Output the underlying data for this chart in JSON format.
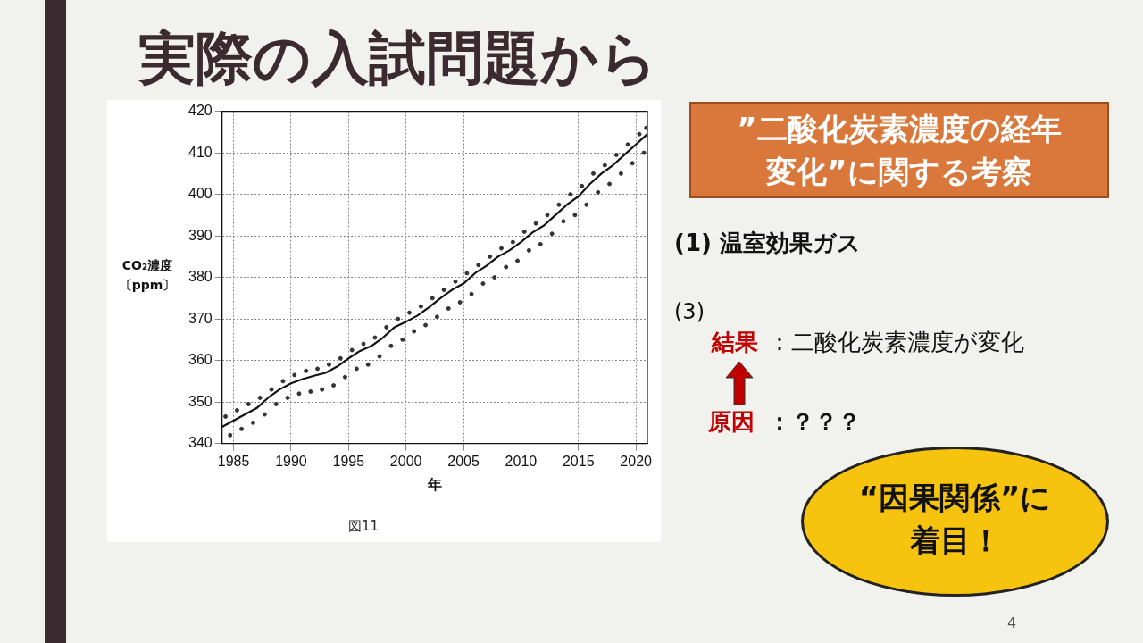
{
  "chart_data": {
    "type": "line",
    "title": "実際の入試問題から",
    "xlabel": "年",
    "ylabel": "CO₂濃度〔ppm〕",
    "xlim": [
      1984,
      2021
    ],
    "xticks": [
      1985,
      1990,
      1995,
      2000,
      2005,
      2010,
      2015,
      2020
    ],
    "ylim": [
      340,
      420
    ],
    "yticks": [
      340,
      350,
      360,
      370,
      380,
      390,
      400,
      410,
      420
    ],
    "grid": true,
    "legend": false,
    "series": [
      {
        "type": "scatter",
        "color": "#333333",
        "marker": "circle",
        "x": [
          1984.3,
          1984.7,
          1985.3,
          1985.7,
          1986.3,
          1986.7,
          1987.3,
          1987.7,
          1988.3,
          1988.7,
          1989.3,
          1989.7,
          1990.3,
          1990.7,
          1991.3,
          1991.7,
          1992.3,
          1992.7,
          1993.3,
          1993.7,
          1994.3,
          1994.7,
          1995.3,
          1995.7,
          1996.3,
          1996.7,
          1997.3,
          1997.7,
          1998.3,
          1998.7,
          1999.3,
          1999.7,
          2000.3,
          2000.7,
          2001.3,
          2001.7,
          2002.3,
          2002.7,
          2003.3,
          2003.7,
          2004.3,
          2004.7,
          2005.3,
          2005.7,
          2006.3,
          2006.7,
          2007.3,
          2007.7,
          2008.3,
          2008.7,
          2009.3,
          2009.7,
          2010.3,
          2010.7,
          2011.3,
          2011.7,
          2012.3,
          2012.7,
          2013.3,
          2013.7,
          2014.3,
          2014.7,
          2015.3,
          2015.7,
          2016.3,
          2016.7,
          2017.3,
          2017.7,
          2018.3,
          2018.7,
          2019.3,
          2019.7,
          2020.3,
          2020.7,
          2020.9
        ],
        "values": [
          346.5,
          342,
          348,
          343.5,
          349.5,
          345,
          351,
          347,
          353,
          349.5,
          355,
          351,
          356.5,
          352,
          357.5,
          352.5,
          358,
          353,
          359,
          354,
          360.5,
          356,
          362.5,
          358,
          364,
          359,
          365.5,
          361,
          368,
          363.5,
          370,
          365,
          371.5,
          367,
          373,
          368.5,
          375,
          370.5,
          377,
          372.5,
          379,
          374,
          381,
          376,
          383,
          378.5,
          385,
          380,
          387,
          382.5,
          388.5,
          384,
          391,
          386.5,
          393,
          388,
          395,
          390.5,
          397.5,
          393.5,
          400,
          395,
          402,
          397.5,
          405,
          400.5,
          407,
          402.5,
          409.5,
          405,
          412,
          407.5,
          414.5,
          410,
          416
        ]
      },
      {
        "type": "line",
        "color": "#111111",
        "marker": "none",
        "line_style": "solid",
        "x": [
          1984,
          1985,
          1986,
          1987,
          1988,
          1989,
          1990,
          1991,
          1992,
          1993,
          1994,
          1995,
          1996,
          1997,
          1998,
          1999,
          2000,
          2001,
          2002,
          2003,
          2004,
          2005,
          2006,
          2007,
          2008,
          2009,
          2010,
          2011,
          2012,
          2013,
          2014,
          2015,
          2016,
          2017,
          2018,
          2019,
          2020,
          2021
        ],
        "values": [
          344,
          345.5,
          347,
          348.5,
          351,
          353,
          354.5,
          355.5,
          356.3,
          357,
          358.5,
          360.5,
          362.3,
          363.5,
          365.5,
          368,
          369.3,
          370.8,
          372.8,
          375,
          377,
          378.5,
          381,
          382.8,
          385,
          386.5,
          388.5,
          390.8,
          392.5,
          395,
          397.5,
          399.5,
          402.5,
          405,
          407,
          409.5,
          412,
          414.5
        ]
      }
    ],
    "annotations": [
      "図11",
      "”二酸化炭素濃度の経年変化”に関する考察",
      "(1) 温室効果ガス",
      "(3)",
      "結果",
      "：二酸化炭素濃度が変化",
      "原因",
      "：？？？",
      "“因果関係”に着目！",
      "4"
    ]
  }
}
